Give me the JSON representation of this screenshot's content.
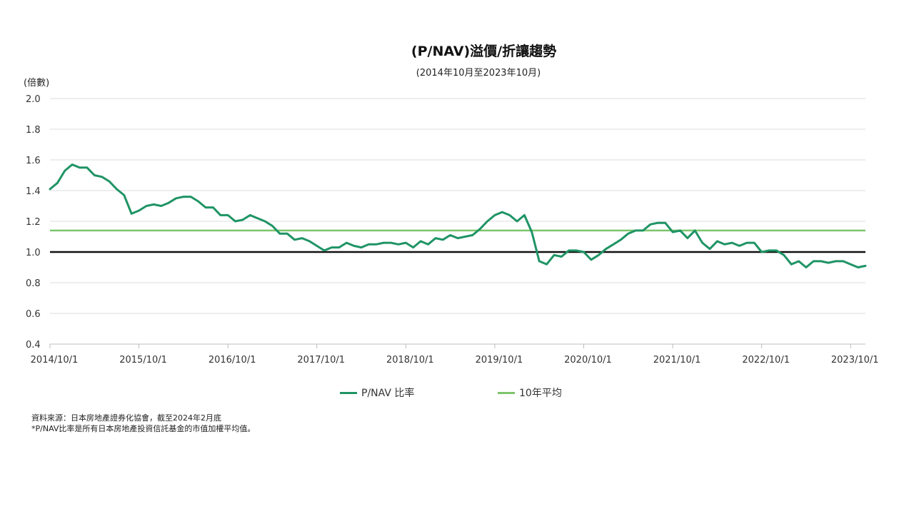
{
  "chart_data": {
    "type": "line",
    "title": "(P/NAV)溢價/折讓趨勢",
    "subtitle": "(2014年10月至2023年10月)",
    "ylabel": "(倍數)",
    "ylim": [
      0.4,
      2.0
    ],
    "yticks": [
      "0.4",
      "0.6",
      "0.8",
      "1.0",
      "1.2",
      "1.4",
      "1.6",
      "1.8",
      "2.0"
    ],
    "xticks": [
      "2014/10/1",
      "2015/10/1",
      "2016/10/1",
      "2017/10/1",
      "2018/10/1",
      "2019/10/1",
      "2020/10/1",
      "2021/10/1",
      "2022/10/1",
      "2023/10/1"
    ],
    "grid": true,
    "legend_position": "bottom",
    "reference_lines": [
      {
        "name": "10年平均",
        "value": 1.14,
        "color": "#7dc46d"
      },
      {
        "name": "",
        "value": 1.0,
        "color": "#111111"
      }
    ],
    "series": [
      {
        "name": "P/NAV 比率",
        "color": "#1f9465",
        "values": [
          1.41,
          1.45,
          1.53,
          1.57,
          1.55,
          1.55,
          1.5,
          1.49,
          1.46,
          1.41,
          1.37,
          1.25,
          1.27,
          1.3,
          1.31,
          1.3,
          1.32,
          1.35,
          1.36,
          1.36,
          1.33,
          1.29,
          1.29,
          1.24,
          1.24,
          1.2,
          1.21,
          1.24,
          1.22,
          1.2,
          1.17,
          1.12,
          1.12,
          1.08,
          1.09,
          1.07,
          1.04,
          1.01,
          1.03,
          1.03,
          1.06,
          1.04,
          1.03,
          1.05,
          1.05,
          1.06,
          1.06,
          1.05,
          1.06,
          1.03,
          1.07,
          1.05,
          1.09,
          1.08,
          1.11,
          1.09,
          1.1,
          1.11,
          1.15,
          1.2,
          1.24,
          1.26,
          1.24,
          1.2,
          1.24,
          1.13,
          0.94,
          0.92,
          0.98,
          0.97,
          1.01,
          1.01,
          1.0,
          0.95,
          0.98,
          1.02,
          1.05,
          1.08,
          1.12,
          1.14,
          1.14,
          1.18,
          1.19,
          1.19,
          1.13,
          1.14,
          1.09,
          1.14,
          1.06,
          1.02,
          1.07,
          1.05,
          1.06,
          1.04,
          1.06,
          1.06,
          1.0,
          1.01,
          1.01,
          0.98,
          0.92,
          0.94,
          0.9,
          0.94,
          0.94,
          0.93,
          0.94,
          0.94,
          0.92,
          0.9,
          0.91
        ]
      }
    ]
  },
  "legend": {
    "series_label": "P/NAV 比率",
    "average_label": "10年平均"
  },
  "notes": {
    "source": "資料來源：日本房地產證券化協會，截至2024年2月底",
    "footnote": "*P/NAV比率是所有日本房地產投資信託基金的市值加權平均值。"
  }
}
